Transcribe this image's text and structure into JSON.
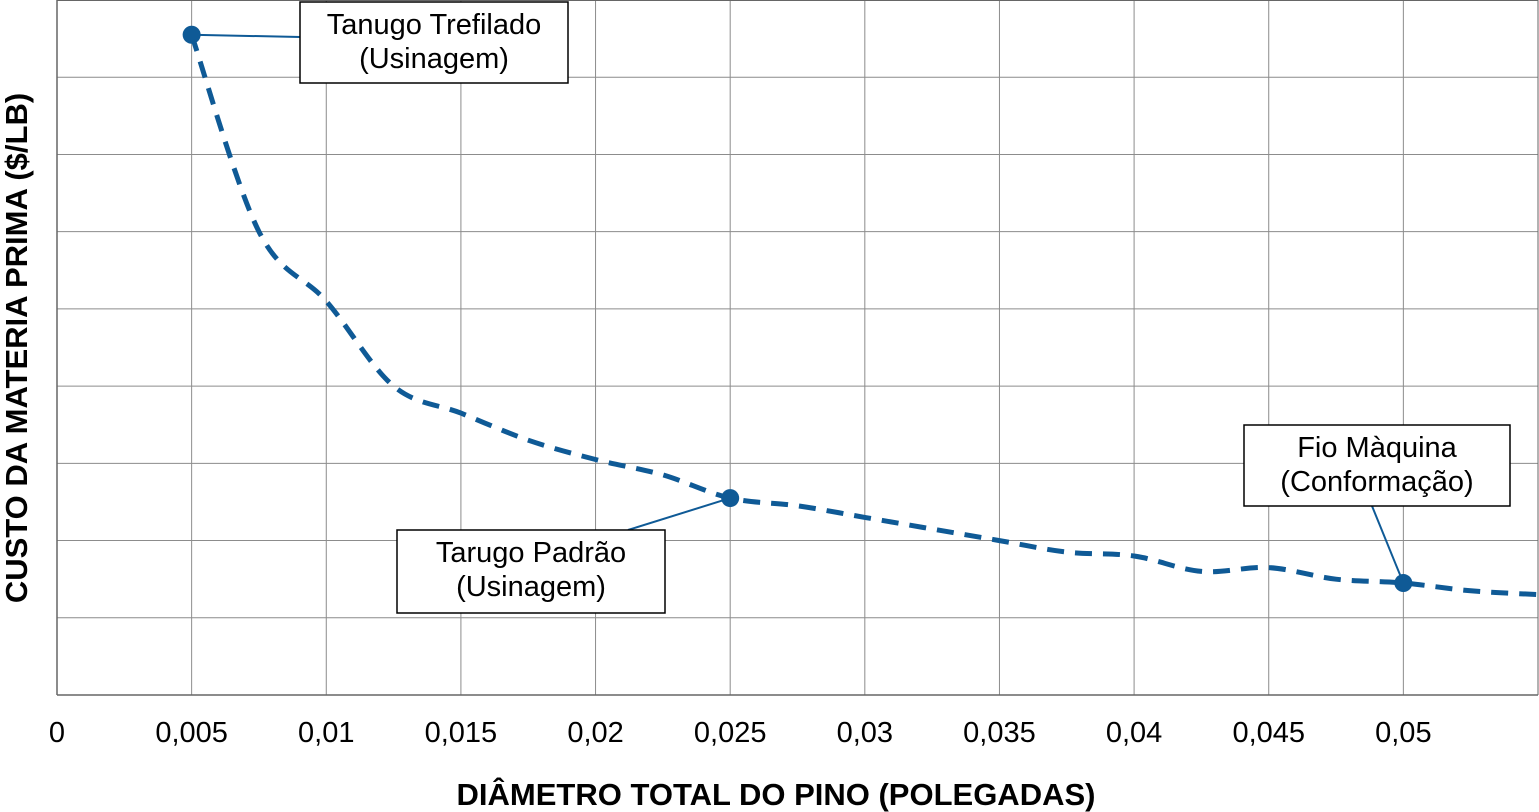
{
  "chart_data": {
    "type": "line",
    "title": "",
    "xlabel": "DIÂMETRO TOTAL DO PINO (POLEGADAS)",
    "ylabel": "CUSTO DA MATERIA PRIMA ($/LB)",
    "x_ticks": [
      "0",
      "0,005",
      "0,01",
      "0,015",
      "0,02",
      "0,025",
      "0,03",
      "0,035",
      "0,04",
      "0,045",
      "0,05"
    ],
    "xlim": [
      0,
      0.055
    ],
    "ylim": [
      0,
      9
    ],
    "y_tick_labels_shown": false,
    "grid": true,
    "series": [
      {
        "style": "dashed",
        "color": "#0f5a96",
        "x": [
          0.005,
          0.0075,
          0.01,
          0.0125,
          0.015,
          0.0175,
          0.02,
          0.0225,
          0.025,
          0.0275,
          0.03,
          0.0325,
          0.035,
          0.0375,
          0.04,
          0.0425,
          0.045,
          0.0475,
          0.05,
          0.0525,
          0.055
        ],
        "y": [
          8.55,
          6.0,
          5.1,
          4.0,
          3.65,
          3.3,
          3.05,
          2.85,
          2.55,
          2.45,
          2.3,
          2.15,
          2.0,
          1.85,
          1.8,
          1.6,
          1.65,
          1.5,
          1.45,
          1.35,
          1.3
        ]
      }
    ],
    "points": [
      {
        "x": 0.005,
        "y": 8.55,
        "label_line1": "Tanugo Trefilado",
        "label_line2": "(Usinagem)"
      },
      {
        "x": 0.025,
        "y": 2.55,
        "label_line1": "Tarugo Padrão",
        "label_line2": "(Usinagem)"
      },
      {
        "x": 0.05,
        "y": 1.45,
        "label_line1": "Fio Màquina",
        "label_line2": "(Conformação)"
      }
    ],
    "colors": {
      "line": "#0f5a96",
      "grid": "#8c8c8c",
      "axis": "#666666"
    }
  }
}
